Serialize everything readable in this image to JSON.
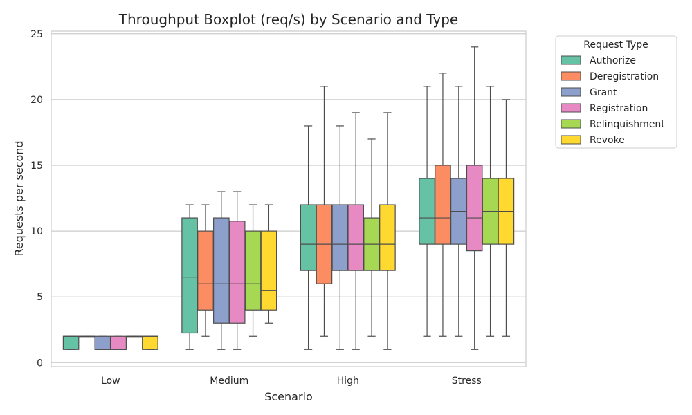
{
  "chart_data": {
    "type": "boxplot",
    "title": "Throughput Boxplot (req/s) by Scenario and Type",
    "xlabel": "Scenario",
    "ylabel": "Requests per second",
    "ylim": [
      -0.3,
      25.2
    ],
    "yticks": [
      0,
      5,
      10,
      15,
      20,
      25
    ],
    "categories": [
      "Low",
      "Medium",
      "High",
      "Stress"
    ],
    "grid": "horizontal",
    "legend": {
      "title": "Request Type",
      "placement": "outside-right-top"
    },
    "series": [
      {
        "name": "Authorize",
        "color": "#66c2a5",
        "boxes": [
          {
            "whislo": 1,
            "q1": 1,
            "med": 2,
            "q3": 2,
            "whishi": 2
          },
          {
            "whislo": 1,
            "q1": 2.25,
            "med": 6.5,
            "q3": 11,
            "whishi": 12
          },
          {
            "whislo": 1,
            "q1": 7,
            "med": 9,
            "q3": 12,
            "whishi": 18
          },
          {
            "whislo": 2,
            "q1": 9,
            "med": 11,
            "q3": 14,
            "whishi": 21
          }
        ]
      },
      {
        "name": "Deregistration",
        "color": "#fc8d62",
        "boxes": [
          {
            "whislo": 2,
            "q1": 2,
            "med": 2,
            "q3": 2,
            "whishi": 2
          },
          {
            "whislo": 2,
            "q1": 4,
            "med": 6,
            "q3": 10,
            "whishi": 12
          },
          {
            "whislo": 2,
            "q1": 6,
            "med": 9,
            "q3": 12,
            "whishi": 21
          },
          {
            "whislo": 2,
            "q1": 9,
            "med": 11,
            "q3": 15,
            "whishi": 22
          }
        ]
      },
      {
        "name": "Grant",
        "color": "#8da0cb",
        "boxes": [
          {
            "whislo": 1,
            "q1": 1,
            "med": 1,
            "q3": 2,
            "whishi": 2
          },
          {
            "whislo": 1,
            "q1": 3,
            "med": 6,
            "q3": 11,
            "whishi": 13
          },
          {
            "whislo": 1,
            "q1": 7,
            "med": 9,
            "q3": 12,
            "whishi": 18
          },
          {
            "whislo": 2,
            "q1": 9,
            "med": 11.5,
            "q3": 14,
            "whishi": 21
          }
        ]
      },
      {
        "name": "Registration",
        "color": "#e78ac3",
        "boxes": [
          {
            "whislo": 1,
            "q1": 1,
            "med": 1,
            "q3": 2,
            "whishi": 2
          },
          {
            "whislo": 1,
            "q1": 3,
            "med": 6,
            "q3": 10.75,
            "whishi": 13
          },
          {
            "whislo": 1,
            "q1": 7,
            "med": 9,
            "q3": 12,
            "whishi": 19
          },
          {
            "whislo": 1,
            "q1": 8.5,
            "med": 11,
            "q3": 15,
            "whishi": 24
          }
        ]
      },
      {
        "name": "Relinquishment",
        "color": "#a6d854",
        "boxes": [
          {
            "whislo": 2,
            "q1": 2,
            "med": 2,
            "q3": 2,
            "whishi": 2
          },
          {
            "whislo": 2,
            "q1": 4,
            "med": 6,
            "q3": 10,
            "whishi": 12
          },
          {
            "whislo": 2,
            "q1": 7,
            "med": 9,
            "q3": 11,
            "whishi": 17
          },
          {
            "whislo": 2,
            "q1": 9,
            "med": 11.5,
            "q3": 14,
            "whishi": 21
          }
        ]
      },
      {
        "name": "Revoke",
        "color": "#ffd92f",
        "boxes": [
          {
            "whislo": 1,
            "q1": 1,
            "med": 2,
            "q3": 2,
            "whishi": 2
          },
          {
            "whislo": 3,
            "q1": 4,
            "med": 5.5,
            "q3": 10,
            "whishi": 12
          },
          {
            "whislo": 1,
            "q1": 7,
            "med": 9,
            "q3": 12,
            "whishi": 19
          },
          {
            "whislo": 2,
            "q1": 9,
            "med": 11.5,
            "q3": 14,
            "whishi": 20
          }
        ]
      }
    ]
  }
}
